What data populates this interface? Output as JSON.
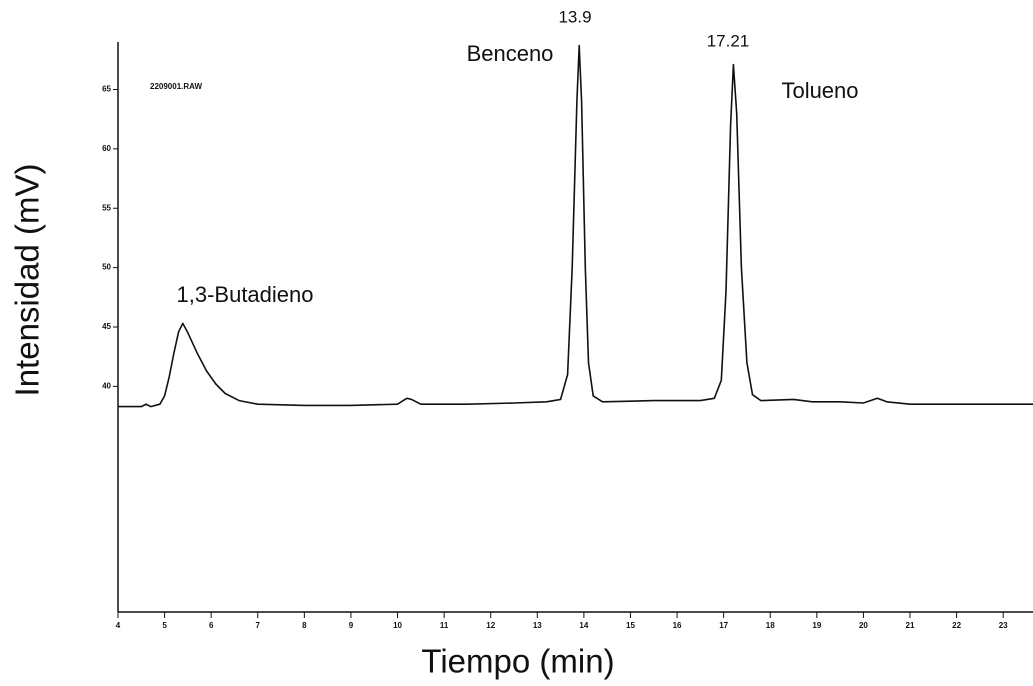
{
  "chart_data": {
    "type": "line",
    "x_label": "Tiempo (min)",
    "y_label": "Intensidad (mV)",
    "annotations": [
      "2209001.RAW",
      "1,3-Butadieno",
      "Benceno",
      "13.9",
      "17.21",
      "Tolueno"
    ],
    "x": [
      4.0,
      4.5,
      4.6,
      4.7,
      4.9,
      5.0,
      5.1,
      5.2,
      5.3,
      5.39,
      5.5,
      5.7,
      5.9,
      6.1,
      6.3,
      6.6,
      7.0,
      8.0,
      9.0,
      10.0,
      10.2,
      10.3,
      10.5,
      11.5,
      12.5,
      13.2,
      13.5,
      13.65,
      13.75,
      13.85,
      13.9,
      13.95,
      14.03,
      14.1,
      14.2,
      14.4,
      15.5,
      16.5,
      16.8,
      16.95,
      17.05,
      17.15,
      17.21,
      17.28,
      17.38,
      17.5,
      17.62,
      17.8,
      18.5,
      18.9,
      19.5,
      20.0,
      20.3,
      20.5,
      21.0,
      22.0,
      23.64
    ],
    "series": [
      {
        "color": "#111111",
        "values": [
          38.3,
          38.3,
          38.5,
          38.3,
          38.5,
          39.2,
          40.8,
          42.8,
          44.6,
          45.3,
          44.5,
          42.8,
          41.3,
          40.2,
          39.4,
          38.8,
          38.5,
          38.4,
          38.4,
          38.5,
          39.0,
          38.9,
          38.5,
          38.5,
          38.6,
          38.7,
          38.9,
          41,
          50,
          64,
          68.7,
          64,
          50,
          42,
          39.2,
          38.7,
          38.8,
          38.8,
          39.0,
          40.5,
          48,
          62,
          67.1,
          63,
          50,
          42,
          39.3,
          38.8,
          38.9,
          38.7,
          38.7,
          38.6,
          39.0,
          38.7,
          38.5,
          38.5,
          38.5
        ]
      }
    ],
    "xlim": [
      4,
      23.64
    ],
    "xticks": [
      4,
      5,
      6,
      7,
      8,
      9,
      10,
      11,
      12,
      13,
      14,
      15,
      16,
      17,
      18,
      19,
      20,
      21,
      22,
      23
    ],
    "ylim": [
      21,
      69
    ],
    "yticks": [
      40,
      45,
      50,
      55,
      60,
      65
    ],
    "grid": false
  }
}
